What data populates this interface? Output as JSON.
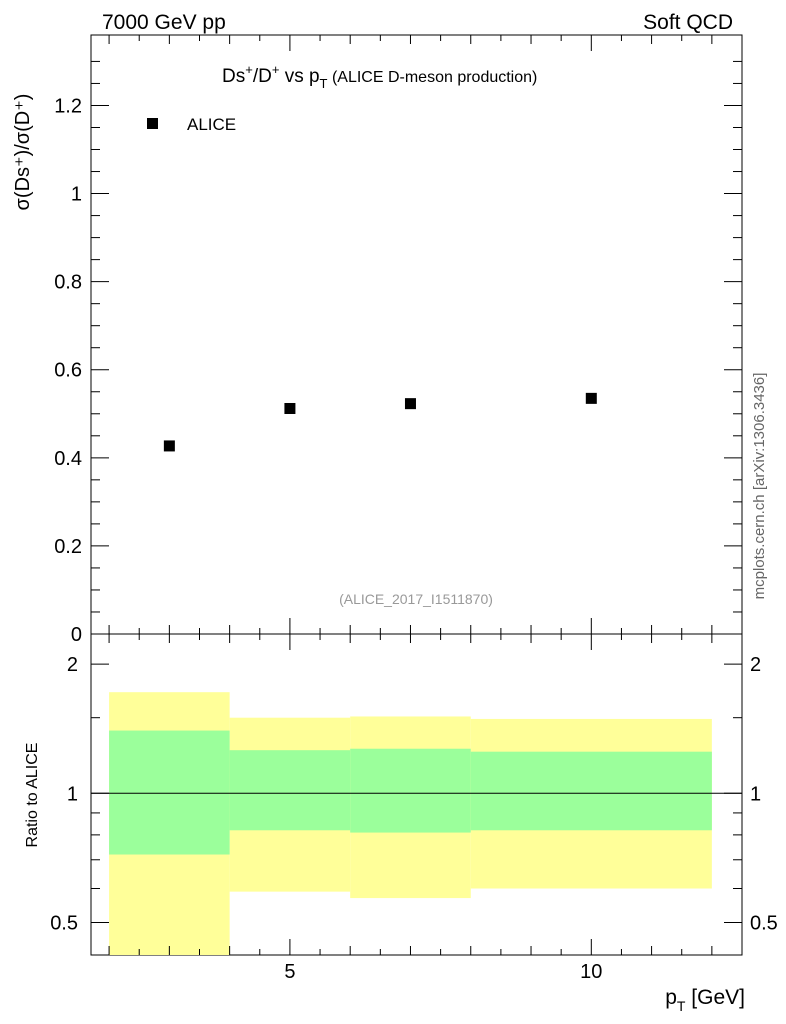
{
  "header": {
    "left": "7000 GeV pp",
    "right": "Soft QCD"
  },
  "side_label": "mcplots.cern.ch [arXiv:1306.3436]",
  "chart_data": [
    {
      "type": "scatter",
      "title": "Ds⁺/D⁺ vs pT (ALICE D-meson production)",
      "title_parts": {
        "main": "Ds",
        "sup1": "+",
        "mid": "/D",
        "sup2": "+",
        "vs": " vs p",
        "sub": "T",
        "paren": " (ALICE D-meson production)"
      },
      "ylabel": "σ(Ds⁺)/σ(D⁺)",
      "analysis_tag": "(ALICE_2017_I1511870)",
      "xlim": [
        1.7,
        12.5
      ],
      "ylim": [
        0,
        1.36
      ],
      "yticks": [
        0,
        0.2,
        0.4,
        0.6,
        0.8,
        1,
        1.2
      ],
      "ytick_labels": [
        "0",
        "0.2",
        "0.4",
        "0.6",
        "0.8",
        "1",
        "1.2"
      ],
      "legend": {
        "label": "ALICE",
        "position": "top-left"
      },
      "series": [
        {
          "name": "ALICE",
          "x": [
            3,
            5,
            7,
            10
          ],
          "y": [
            0.427,
            0.512,
            0.523,
            0.535
          ]
        }
      ]
    },
    {
      "type": "area",
      "ylabel": "Ratio to ALICE",
      "xlabel": "pT [GeV]",
      "xlabel_parts": {
        "main": "p",
        "sub": "T",
        "unit": " [GeV]"
      },
      "xlim": [
        1.7,
        12.5
      ],
      "ylim": [
        0.42,
        2.35
      ],
      "log_scale": true,
      "xticks": [
        5,
        10
      ],
      "xtick_labels": [
        "5",
        "10"
      ],
      "yticks": [
        0.5,
        1,
        2
      ],
      "ytick_labels": [
        "0.5",
        "1",
        "2"
      ],
      "bins": [
        {
          "x_low": 2,
          "x_high": 4,
          "inner": [
            0.72,
            1.4
          ],
          "outer": [
            0.4,
            1.72
          ]
        },
        {
          "x_low": 4,
          "x_high": 6,
          "inner": [
            0.82,
            1.26
          ],
          "outer": [
            0.59,
            1.5
          ]
        },
        {
          "x_low": 6,
          "x_high": 8,
          "inner": [
            0.81,
            1.27
          ],
          "outer": [
            0.57,
            1.51
          ]
        },
        {
          "x_low": 8,
          "x_high": 12,
          "inner": [
            0.82,
            1.25
          ],
          "outer": [
            0.6,
            1.49
          ]
        }
      ],
      "reference_line": 1,
      "colors": {
        "inner_band": "#9bff9b",
        "outer_band": "#ffff99",
        "marker": "#000000"
      }
    }
  ]
}
